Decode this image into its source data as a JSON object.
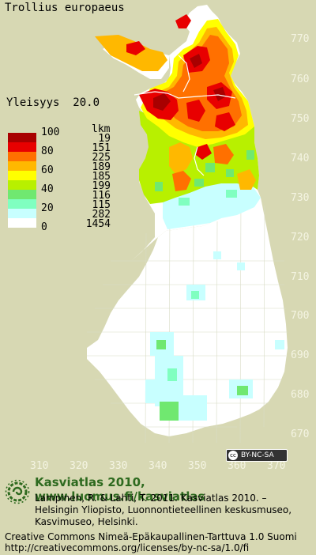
{
  "header": {
    "species": "Trollius europaeus",
    "yleisyys_label": "Yleisyys",
    "yleisyys_value": "20.0"
  },
  "legend": {
    "count_header": "lkm",
    "rows": [
      {
        "label": "100",
        "count": "19",
        "color": "#a80000"
      },
      {
        "label": "",
        "count": "151",
        "color": "#e80000"
      },
      {
        "label": "80",
        "count": "225",
        "color": "#ff7000"
      },
      {
        "label": "",
        "count": "189",
        "color": "#ffb800"
      },
      {
        "label": "60",
        "count": "185",
        "color": "#ffff00"
      },
      {
        "label": "",
        "count": "199",
        "color": "#b8f000"
      },
      {
        "label": "40",
        "count": "116",
        "color": "#70e870"
      },
      {
        "label": "",
        "count": "115",
        "color": "#80ffc0"
      },
      {
        "label": "20",
        "count": "282",
        "color": "#c8ffff"
      },
      {
        "label": "0",
        "count": "1454",
        "color": "#ffffff"
      }
    ]
  },
  "axes": {
    "y_ticks": [
      "770",
      "760",
      "750",
      "740",
      "730",
      "720",
      "710",
      "700",
      "690",
      "680",
      "670"
    ],
    "x_ticks": [
      "310",
      "320",
      "330",
      "340",
      "350",
      "360",
      "370"
    ]
  },
  "colors": {
    "background": "#d7d8b3",
    "land": "#ffffff",
    "tick_text": "#f4f4e2",
    "footer_green": "#2e6a1f"
  },
  "license_badge": "BY-NC-SA",
  "footer": {
    "title": "Kasviatlas 2010, www.luomus.fi/kasviatlas",
    "citation_1": "Lampinen, R. & Lahti, T. 2011: Kasviatlas 2010. –",
    "citation_2": "Helsingin Yliopisto, Luonnontieteellinen keskusmuseo,",
    "citation_3": "Kasvimuseo, Helsinki.",
    "license_1": "Creative Commons Nimeä-Epäkaupallinen-Tarttuva 1.0 Suomi",
    "license_2": "http://creativecommons.org/licenses/by-nc-sa/1.0/fi"
  }
}
